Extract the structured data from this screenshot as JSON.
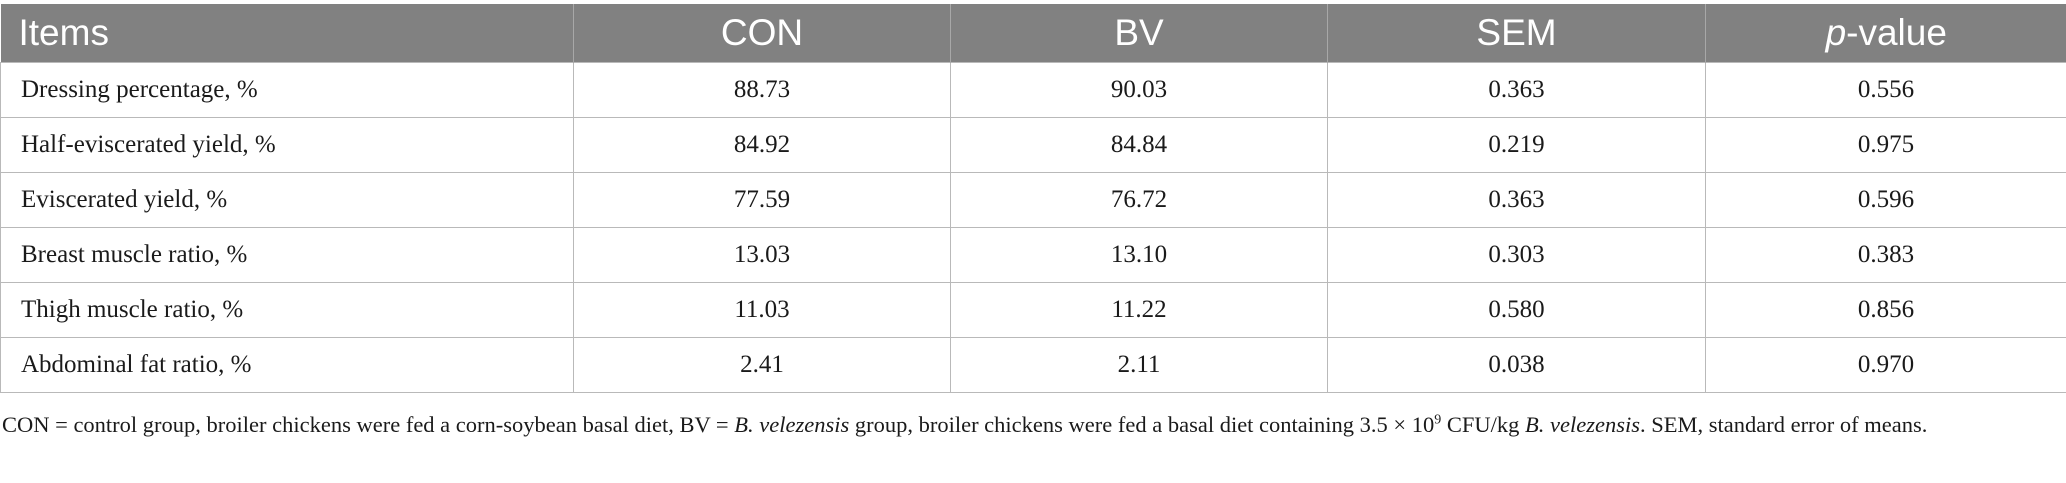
{
  "table": {
    "headers": {
      "items": "Items",
      "con": "CON",
      "bv": "BV",
      "sem": "SEM",
      "p_italic": "p",
      "p_rest": "-value"
    },
    "rows": [
      {
        "item": "Dressing percentage, %",
        "con": "88.73",
        "bv": "90.03",
        "sem": "0.363",
        "p": "0.556"
      },
      {
        "item": "Half-eviscerated yield, %",
        "con": "84.92",
        "bv": "84.84",
        "sem": "0.219",
        "p": "0.975"
      },
      {
        "item": "Eviscerated yield, %",
        "con": "77.59",
        "bv": "76.72",
        "sem": "0.363",
        "p": "0.596"
      },
      {
        "item": "Breast muscle ratio, %",
        "con": "13.03",
        "bv": "13.10",
        "sem": "0.303",
        "p": "0.383"
      },
      {
        "item": "Thigh muscle ratio, %",
        "con": "11.03",
        "bv": "11.22",
        "sem": "0.580",
        "p": "0.856"
      },
      {
        "item": "Abdominal fat ratio, %",
        "con": "2.41",
        "bv": "2.11",
        "sem": "0.038",
        "p": "0.970"
      }
    ]
  },
  "footnote": {
    "part1": "CON = control group, broiler chickens were fed a corn-soybean basal diet, BV = ",
    "species1": "B. velezensis",
    "part2": " group, broiler chickens were fed a basal diet containing 3.5 × 10",
    "exponent": "9",
    "part3": " CFU/kg ",
    "species2": "B. velezensis",
    "part4": ". SEM, standard error of means."
  }
}
